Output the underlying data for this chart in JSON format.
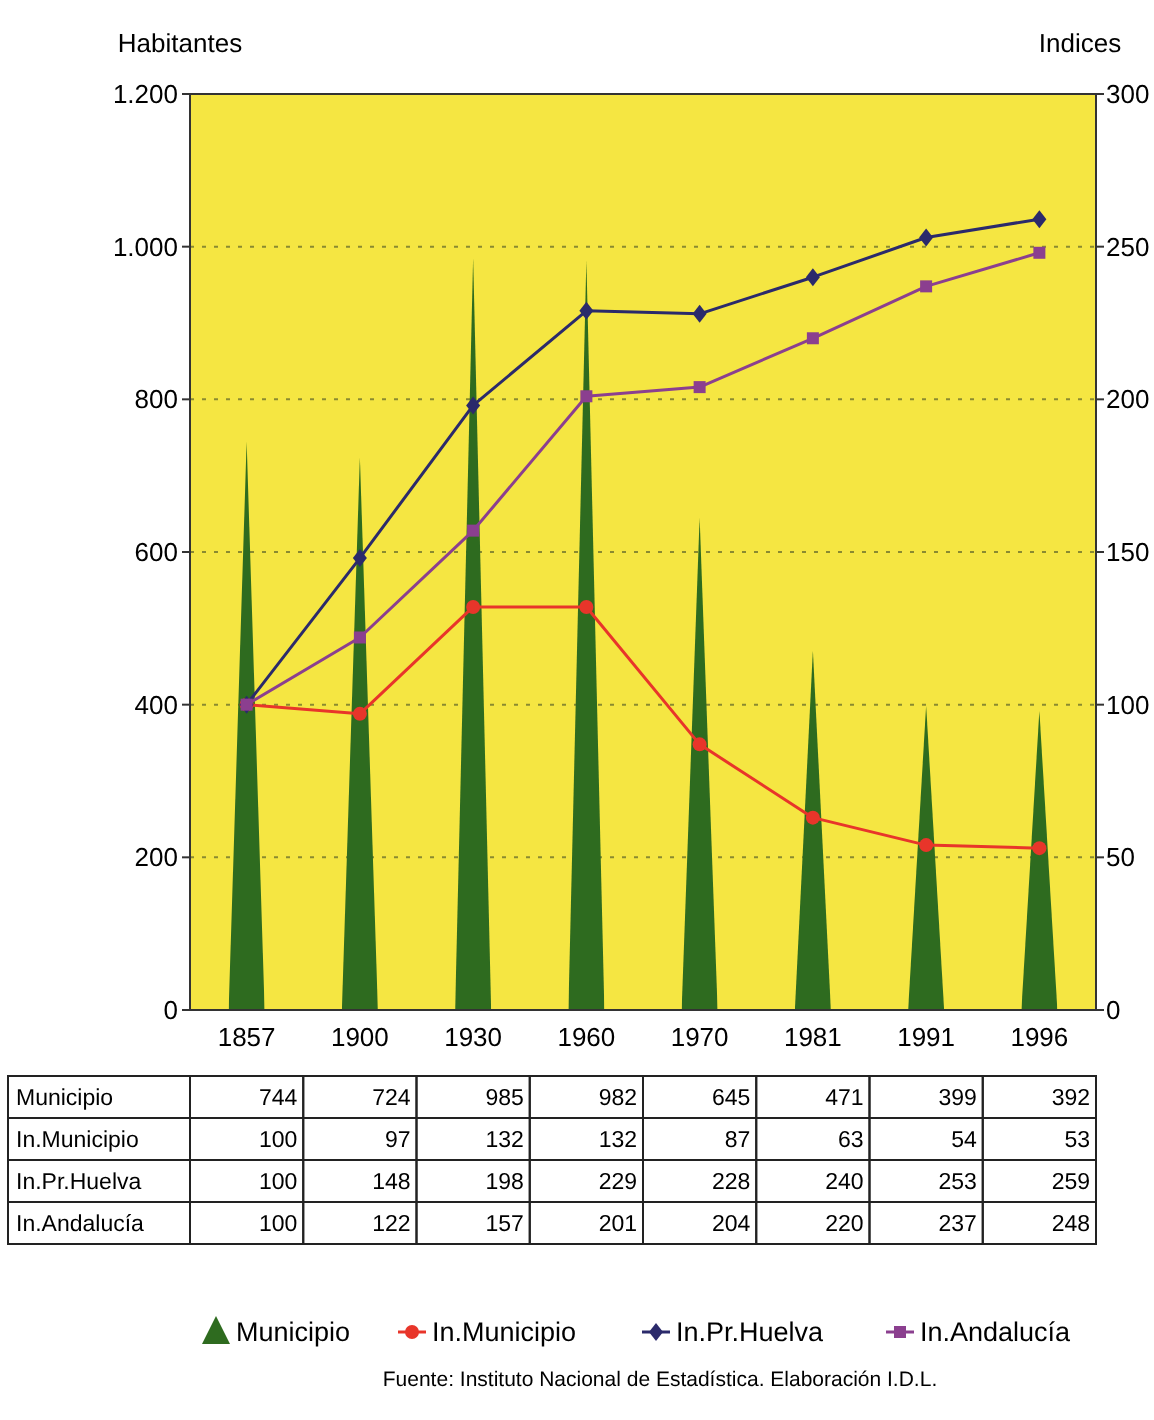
{
  "chart_data": {
    "type": "bar",
    "categories": [
      "1857",
      "1900",
      "1930",
      "1960",
      "1970",
      "1981",
      "1991",
      "1996"
    ],
    "ylabel": "Habitantes",
    "y2label": "Indices",
    "ylim": [
      0,
      1200
    ],
    "yticks": [
      0,
      200,
      400,
      600,
      800,
      {
        "value": 1000,
        "label": "1.000"
      },
      {
        "value": 1200,
        "label": "1.200"
      }
    ],
    "y2lim": [
      0,
      300
    ],
    "y2ticks": [
      0,
      50,
      100,
      150,
      200,
      250,
      300
    ],
    "grid": "y",
    "legend": "bottom",
    "data_labels": true,
    "series": [
      {
        "name": "Municipio",
        "color": "#2e6b1f",
        "values": [
          744,
          724,
          985,
          982,
          645,
          471,
          399,
          392
        ]
      },
      {
        "name": "In.Municipio",
        "type": "line",
        "axis": "y2",
        "marker": "circle",
        "color": "#e8352a",
        "values": [
          100,
          97,
          132,
          132,
          87,
          63,
          54,
          53
        ]
      },
      {
        "name": "In.Pr.Huelva",
        "type": "line",
        "axis": "y2",
        "marker": "diamond",
        "color": "#2b2a6b",
        "values": [
          100,
          148,
          198,
          229,
          228,
          240,
          253,
          259
        ]
      },
      {
        "name": "In.Andalucía",
        "type": "line",
        "axis": "y2",
        "marker": "square",
        "color": "#8b3f8f",
        "values": [
          100,
          122,
          157,
          201,
          204,
          220,
          237,
          248
        ]
      }
    ],
    "annotations": [
      "Fuente: Instituto Nacional de Estadística. Elaboración I.D.L."
    ]
  }
}
